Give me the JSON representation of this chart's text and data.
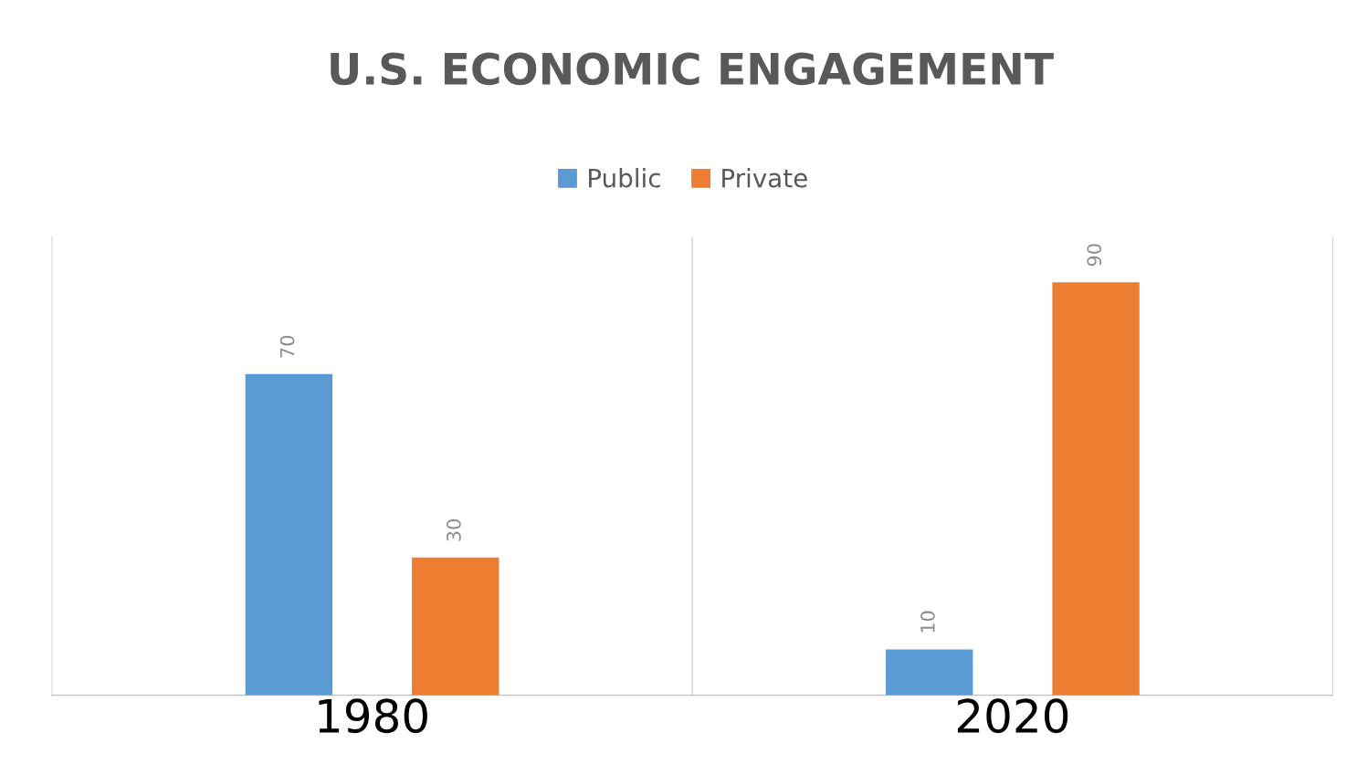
{
  "chart_data": {
    "type": "bar",
    "title": "U.S. ECONOMIC ENGAGEMENT",
    "categories": [
      "1980",
      "2020"
    ],
    "series": [
      {
        "name": "Public",
        "color": "#5b9bd5",
        "values": [
          70,
          10
        ]
      },
      {
        "name": "Private",
        "color": "#ed7d31",
        "values": [
          30,
          90
        ]
      }
    ],
    "data_labels": true,
    "legend": "top",
    "grid": "x"
  }
}
